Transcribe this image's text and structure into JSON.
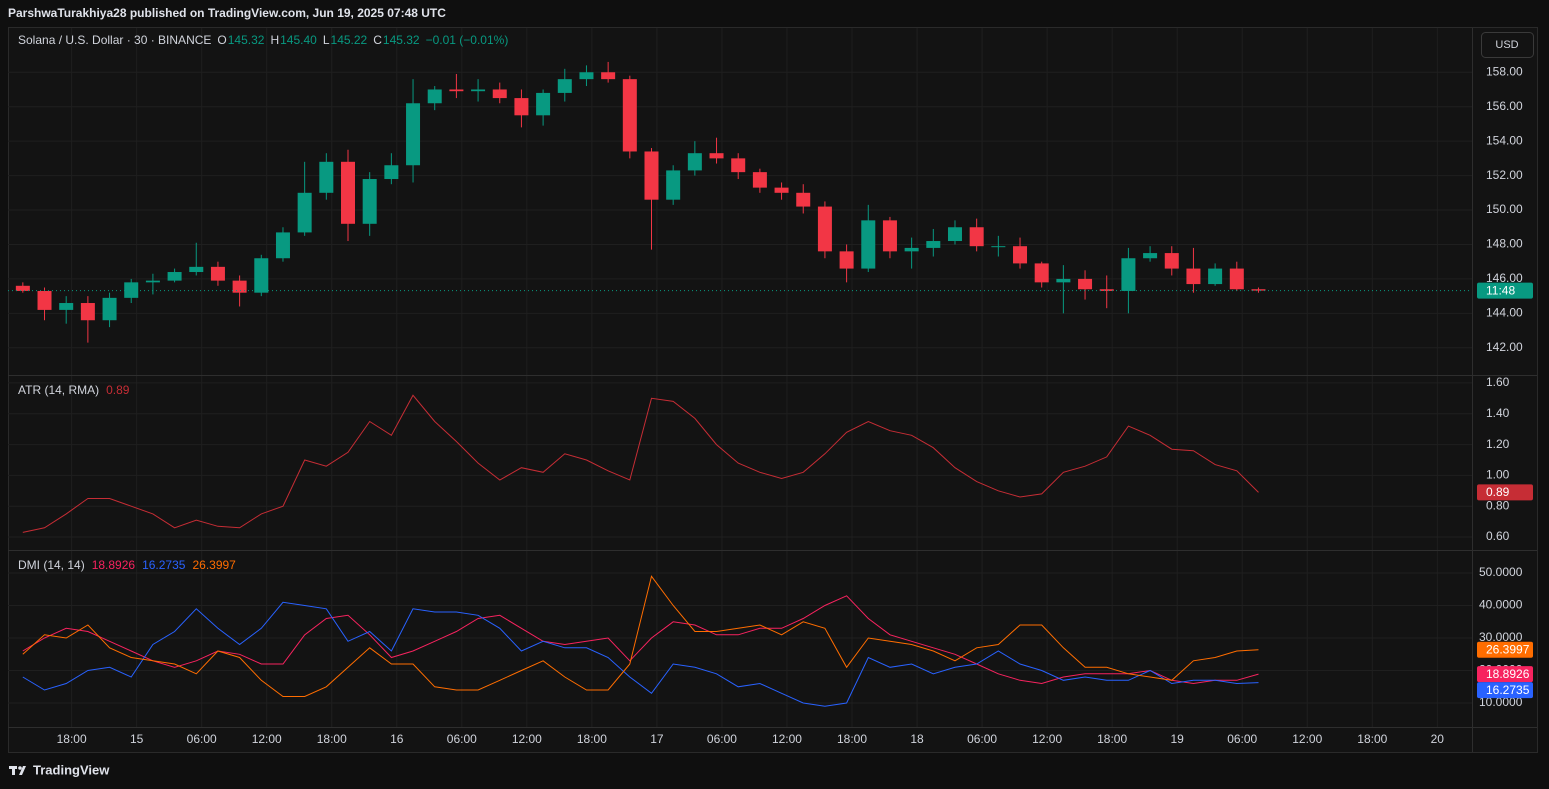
{
  "header": {
    "title": "ParshwaTurakhiya28 published on TradingView.com, Jun 19, 2025 07:48 UTC"
  },
  "footer": {
    "brand": "TradingView"
  },
  "chart_data": [
    {
      "type": "candlestick",
      "title": "Solana / U.S. Dollar · 30 · BINANCE",
      "ohlc_labels": [
        "O",
        "H",
        "L",
        "C"
      ],
      "ohlc_values": [
        "145.32",
        "145.40",
        "145.22",
        "145.32"
      ],
      "change": "−0.01 (−0.01%)",
      "currency": "USD",
      "countdown": "11:48",
      "up_color": "#089981",
      "down_color": "#f23645",
      "x": [
        2,
        6,
        10,
        14,
        18,
        22,
        26,
        30,
        34,
        38,
        42,
        46,
        50,
        54,
        58,
        62,
        66,
        70,
        74,
        78,
        82,
        86,
        90,
        94,
        98,
        102,
        106,
        110,
        114,
        118,
        122,
        126,
        130,
        134,
        138,
        142,
        146,
        150,
        154,
        158,
        162,
        166,
        170,
        174,
        178,
        182,
        186,
        190,
        194,
        198,
        202,
        206,
        210,
        214,
        218,
        222,
        226,
        230
      ],
      "open": [
        145.6,
        145.3,
        144.2,
        144.6,
        143.6,
        144.9,
        145.8,
        145.9,
        146.4,
        146.7,
        145.9,
        145.2,
        147.2,
        148.7,
        151.0,
        152.8,
        149.2,
        151.8,
        152.6,
        156.2,
        157.0,
        156.9,
        157.0,
        156.5,
        155.5,
        156.8,
        157.6,
        158.0,
        157.6,
        153.4,
        150.6,
        152.3,
        153.3,
        153.0,
        152.2,
        151.3,
        151.0,
        150.2,
        147.6,
        146.6,
        149.4,
        147.6,
        147.8,
        148.2,
        149.0,
        147.9,
        147.9,
        146.9,
        145.8,
        146.0,
        145.4,
        145.3,
        147.2,
        147.5,
        146.6,
        145.7,
        146.6,
        145.4
      ],
      "high": [
        145.8,
        145.5,
        145.0,
        145.0,
        145.2,
        146.0,
        146.3,
        146.6,
        148.1,
        147.0,
        146.2,
        147.4,
        149.0,
        152.8,
        153.3,
        153.5,
        152.2,
        153.3,
        157.6,
        157.2,
        157.9,
        157.6,
        157.4,
        157.0,
        157.0,
        158.2,
        158.4,
        158.6,
        157.8,
        153.6,
        152.6,
        154.0,
        154.2,
        153.3,
        152.4,
        151.6,
        151.5,
        150.5,
        148.0,
        150.3,
        149.6,
        148.4,
        148.9,
        149.4,
        149.5,
        148.5,
        148.4,
        147.0,
        146.8,
        146.5,
        146.2,
        147.8,
        147.9,
        147.9,
        147.8,
        146.9,
        147.0,
        145.5
      ],
      "low": [
        145.2,
        143.6,
        143.4,
        142.3,
        143.2,
        144.6,
        145.1,
        145.8,
        146.2,
        145.6,
        144.4,
        145.0,
        147.0,
        148.5,
        150.6,
        148.2,
        148.5,
        151.5,
        151.6,
        155.8,
        156.5,
        156.3,
        156.2,
        154.8,
        154.9,
        156.3,
        157.2,
        157.4,
        153.0,
        147.7,
        150.3,
        152.0,
        152.7,
        151.8,
        151.0,
        150.6,
        149.8,
        147.2,
        145.8,
        146.4,
        147.2,
        146.6,
        147.3,
        148.0,
        147.6,
        147.3,
        146.6,
        145.5,
        144.0,
        144.8,
        144.3,
        144.0,
        147.0,
        146.2,
        145.2,
        145.6,
        145.3,
        145.2
      ],
      "close": [
        145.3,
        144.2,
        144.6,
        143.6,
        144.9,
        145.8,
        145.9,
        146.4,
        146.7,
        145.9,
        145.2,
        147.2,
        148.7,
        151.0,
        152.8,
        149.2,
        151.8,
        152.6,
        156.2,
        157.0,
        156.9,
        157.0,
        156.5,
        155.5,
        156.8,
        157.6,
        158.0,
        157.6,
        153.4,
        150.6,
        152.3,
        153.3,
        153.0,
        152.2,
        151.3,
        151.0,
        150.2,
        147.6,
        146.6,
        149.4,
        147.6,
        147.8,
        148.2,
        149.0,
        147.9,
        147.9,
        146.9,
        145.8,
        146.0,
        145.4,
        145.3,
        147.2,
        147.5,
        146.6,
        145.7,
        146.6,
        145.4,
        145.32
      ],
      "xlim": [
        0,
        269.4
      ],
      "xticks": [
        {
          "value": 11,
          "label": "18:00"
        },
        {
          "value": 23,
          "label": "15"
        },
        {
          "value": 35,
          "label": "06:00"
        },
        {
          "value": 47,
          "label": "12:00"
        },
        {
          "value": 59,
          "label": "18:00"
        },
        {
          "value": 71,
          "label": "16"
        },
        {
          "value": 83,
          "label": "06:00"
        },
        {
          "value": 95,
          "label": "12:00"
        },
        {
          "value": 107,
          "label": "18:00"
        },
        {
          "value": 119,
          "label": "17"
        },
        {
          "value": 131,
          "label": "06:00"
        },
        {
          "value": 143,
          "label": "12:00"
        },
        {
          "value": 155,
          "label": "18:00"
        },
        {
          "value": 167,
          "label": "18"
        },
        {
          "value": 179,
          "label": "06:00"
        },
        {
          "value": 191,
          "label": "12:00"
        },
        {
          "value": 203,
          "label": "18:00"
        },
        {
          "value": 215,
          "label": "19"
        },
        {
          "value": 227,
          "label": "06:00"
        },
        {
          "value": 239,
          "label": "12:00"
        },
        {
          "value": 251,
          "label": "18:00"
        },
        {
          "value": 263,
          "label": "20"
        }
      ],
      "ylim": [
        140.42,
        160.57
      ],
      "yticks": [
        {
          "value": 142,
          "label": "142.00"
        },
        {
          "value": 144,
          "label": "144.00"
        },
        {
          "value": 146,
          "label": "146.00"
        },
        {
          "value": 148,
          "label": "148.00"
        },
        {
          "value": 150,
          "label": "150.00"
        },
        {
          "value": 152,
          "label": "152.00"
        },
        {
          "value": 154,
          "label": "154.00"
        },
        {
          "value": 156,
          "label": "156.00"
        },
        {
          "value": 158,
          "label": "158.00"
        }
      ],
      "grid": true
    },
    {
      "type": "line",
      "title": "ATR (14, RMA)",
      "color": "#c62d35",
      "x": [
        2,
        6,
        10,
        14,
        18,
        22,
        26,
        30,
        34,
        38,
        42,
        46,
        50,
        54,
        58,
        62,
        66,
        70,
        74,
        78,
        82,
        86,
        90,
        94,
        98,
        102,
        106,
        110,
        114,
        118,
        122,
        126,
        130,
        134,
        138,
        142,
        146,
        150,
        154,
        158,
        162,
        166,
        170,
        174,
        178,
        182,
        186,
        190,
        194,
        198,
        202,
        206,
        210,
        214,
        218,
        222,
        226,
        230
      ],
      "values": [
        0.63,
        0.66,
        0.75,
        0.85,
        0.85,
        0.8,
        0.75,
        0.66,
        0.71,
        0.67,
        0.66,
        0.75,
        0.8,
        1.1,
        1.06,
        1.15,
        1.35,
        1.26,
        1.52,
        1.35,
        1.22,
        1.08,
        0.97,
        1.05,
        1.02,
        1.14,
        1.1,
        1.03,
        0.97,
        1.5,
        1.48,
        1.37,
        1.2,
        1.08,
        1.02,
        0.98,
        1.02,
        1.14,
        1.28,
        1.35,
        1.29,
        1.26,
        1.18,
        1.05,
        0.96,
        0.9,
        0.86,
        0.88,
        1.02,
        1.06,
        1.12,
        1.32,
        1.26,
        1.17,
        1.16,
        1.07,
        1.03,
        0.89
      ],
      "ylim": [
        0.516,
        1.645
      ],
      "yticks": [
        {
          "value": 0.6,
          "label": "0.60"
        },
        {
          "value": 0.8,
          "label": "0.80"
        },
        {
          "value": 1.0,
          "label": "1.00"
        },
        {
          "value": 1.2,
          "label": "1.20"
        },
        {
          "value": 1.4,
          "label": "1.40"
        },
        {
          "value": 1.6,
          "label": "1.60"
        }
      ],
      "grid": true
    },
    {
      "type": "line",
      "title": "DMI (14, 14)",
      "x": [
        2,
        6,
        10,
        14,
        18,
        22,
        26,
        30,
        34,
        38,
        42,
        46,
        50,
        54,
        58,
        62,
        66,
        70,
        74,
        78,
        82,
        86,
        90,
        94,
        98,
        102,
        106,
        110,
        114,
        118,
        122,
        126,
        130,
        134,
        138,
        142,
        146,
        150,
        154,
        158,
        162,
        166,
        170,
        174,
        178,
        182,
        186,
        190,
        194,
        198,
        202,
        206,
        210,
        214,
        218,
        222,
        226,
        230
      ],
      "series": [
        {
          "color": "#f7235f",
          "values": [
            26,
            30,
            33,
            32,
            29,
            26,
            23,
            21,
            23,
            26,
            25,
            22,
            22,
            31,
            36,
            37,
            31,
            24,
            26,
            29,
            32,
            36,
            37,
            33,
            29,
            28,
            29,
            30,
            23,
            30,
            35,
            34,
            31,
            31,
            33,
            33,
            36,
            40,
            43,
            36,
            31,
            29,
            27,
            25,
            22,
            19,
            17,
            16,
            18,
            19,
            19,
            19,
            20,
            17,
            16,
            17,
            17,
            18.8926
          ]
        },
        {
          "color": "#2962ff",
          "values": [
            18,
            14,
            16,
            20,
            21,
            18,
            28,
            32,
            39,
            33,
            28,
            33,
            41,
            40,
            39,
            29,
            32,
            26,
            39,
            38,
            38,
            37,
            33,
            26,
            29,
            27,
            27,
            24,
            18,
            13,
            22,
            21,
            19,
            15,
            16,
            13,
            10,
            9,
            10,
            24,
            21,
            22,
            19,
            21,
            22,
            26,
            22,
            20,
            17,
            18,
            17,
            17,
            20,
            16,
            17,
            17,
            16,
            16.2735
          ]
        },
        {
          "color": "#ff6d00",
          "values": [
            25,
            31,
            30,
            34,
            27,
            24,
            23,
            22,
            19,
            26,
            24,
            17,
            12,
            12,
            15,
            21,
            27,
            22,
            22,
            15,
            14,
            14,
            17,
            20,
            23,
            18,
            14,
            14,
            22,
            49,
            40,
            32,
            32,
            33,
            34,
            31,
            35,
            33,
            21,
            30,
            29,
            28,
            26,
            23,
            27,
            28,
            34,
            34,
            27,
            21,
            21,
            19,
            18,
            17,
            23,
            24,
            26,
            26.3997
          ]
        }
      ],
      "ylim": [
        2.62,
        56.77
      ],
      "yticks": [
        {
          "value": 10,
          "label": "10.0000"
        },
        {
          "value": 20,
          "label": "20.0000"
        },
        {
          "value": 30,
          "label": "30.0000"
        },
        {
          "value": 40,
          "label": "40.0000"
        },
        {
          "value": 50,
          "label": "50.0000"
        }
      ],
      "grid": true
    }
  ]
}
